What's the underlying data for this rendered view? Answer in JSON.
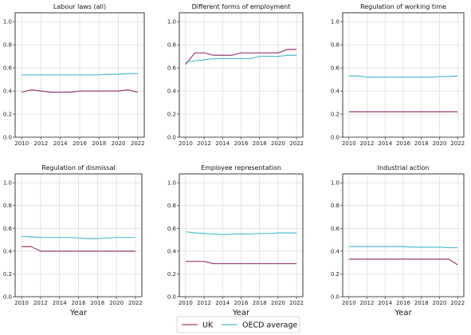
{
  "figure": {
    "legend": {
      "placement": "bottom-center",
      "items": [
        {
          "label": "UK",
          "color": "#9a3a73"
        },
        {
          "label": "OECD average",
          "color": "#4fbfd0"
        }
      ]
    },
    "colors": {
      "uk": "#9a3a73",
      "oecd": "#4fbfd0",
      "grid": "#d9d9d9",
      "axis": "#333333"
    }
  },
  "chart_data": [
    {
      "type": "line",
      "title": "Labour laws (all)",
      "xlabel": "",
      "ylabel": "",
      "grid": true,
      "x": [
        2010,
        2011,
        2012,
        2013,
        2014,
        2015,
        2016,
        2017,
        2018,
        2019,
        2020,
        2021,
        2022
      ],
      "xticks": [
        "2010",
        "2012",
        "2014",
        "2016",
        "2018",
        "2020",
        "2022"
      ],
      "yticks": [
        "0.0",
        "0.2",
        "0.4",
        "0.6",
        "0.8",
        "1.0"
      ],
      "xlim": [
        2010,
        2022
      ],
      "ylim": [
        0,
        1.05
      ],
      "series": [
        {
          "name": "UK",
          "values": [
            0.39,
            0.41,
            0.4,
            0.39,
            0.39,
            0.39,
            0.4,
            0.4,
            0.4,
            0.4,
            0.4,
            0.41,
            0.39
          ]
        },
        {
          "name": "OECD average",
          "values": [
            0.54,
            0.54,
            0.54,
            0.54,
            0.54,
            0.54,
            0.54,
            0.54,
            0.54,
            0.545,
            0.545,
            0.55,
            0.55
          ]
        }
      ]
    },
    {
      "type": "line",
      "title": "Different forms of employment",
      "xlabel": "",
      "ylabel": "",
      "grid": true,
      "x": [
        2010,
        2011,
        2012,
        2013,
        2014,
        2015,
        2016,
        2017,
        2018,
        2019,
        2020,
        2021,
        2022
      ],
      "xticks": [
        "2010",
        "2012",
        "2014",
        "2016",
        "2018",
        "2020",
        "2022"
      ],
      "yticks": [
        "0.0",
        "0.2",
        "0.4",
        "0.6",
        "0.8",
        "1.0"
      ],
      "xlim": [
        2010,
        2022
      ],
      "ylim": [
        0,
        1.05
      ],
      "series": [
        {
          "name": "UK",
          "values": [
            0.63,
            0.73,
            0.73,
            0.71,
            0.71,
            0.71,
            0.73,
            0.73,
            0.73,
            0.73,
            0.73,
            0.76,
            0.76
          ]
        },
        {
          "name": "OECD average",
          "values": [
            0.65,
            0.66,
            0.67,
            0.68,
            0.68,
            0.68,
            0.68,
            0.68,
            0.7,
            0.7,
            0.7,
            0.71,
            0.71
          ]
        }
      ]
    },
    {
      "type": "line",
      "title": "Regulation of working time",
      "xlabel": "",
      "ylabel": "",
      "grid": true,
      "x": [
        2010,
        2011,
        2012,
        2013,
        2014,
        2015,
        2016,
        2017,
        2018,
        2019,
        2020,
        2021,
        2022
      ],
      "xticks": [
        "2010",
        "2012",
        "2014",
        "2016",
        "2018",
        "2020",
        "2022"
      ],
      "yticks": [
        "0.0",
        "0.2",
        "0.4",
        "0.6",
        "0.8",
        "1.0"
      ],
      "xlim": [
        2010,
        2022
      ],
      "ylim": [
        0,
        1.05
      ],
      "series": [
        {
          "name": "UK",
          "values": [
            0.22,
            0.22,
            0.22,
            0.22,
            0.22,
            0.22,
            0.22,
            0.22,
            0.22,
            0.22,
            0.22,
            0.22,
            0.22
          ]
        },
        {
          "name": "OECD average",
          "values": [
            0.53,
            0.53,
            0.52,
            0.52,
            0.52,
            0.52,
            0.52,
            0.52,
            0.52,
            0.52,
            0.525,
            0.525,
            0.53
          ]
        }
      ]
    },
    {
      "type": "line",
      "title": "Regulation of dismissal",
      "xlabel": "Year",
      "ylabel": "",
      "grid": true,
      "x": [
        2010,
        2011,
        2012,
        2013,
        2014,
        2015,
        2016,
        2017,
        2018,
        2019,
        2020,
        2021,
        2022
      ],
      "xticks": [
        "2010",
        "2012",
        "2014",
        "2016",
        "2018",
        "2020",
        "2022"
      ],
      "yticks": [
        "0.0",
        "0.2",
        "0.4",
        "0.6",
        "0.8",
        "1.0"
      ],
      "xlim": [
        2010,
        2022
      ],
      "ylim": [
        0,
        1.05
      ],
      "series": [
        {
          "name": "UK",
          "values": [
            0.44,
            0.44,
            0.4,
            0.4,
            0.4,
            0.4,
            0.4,
            0.4,
            0.4,
            0.4,
            0.4,
            0.4,
            0.4
          ]
        },
        {
          "name": "OECD average",
          "values": [
            0.53,
            0.525,
            0.52,
            0.52,
            0.52,
            0.52,
            0.515,
            0.51,
            0.51,
            0.515,
            0.52,
            0.52,
            0.52
          ]
        }
      ]
    },
    {
      "type": "line",
      "title": "Employee representation",
      "xlabel": "Year",
      "ylabel": "",
      "grid": true,
      "x": [
        2010,
        2011,
        2012,
        2013,
        2014,
        2015,
        2016,
        2017,
        2018,
        2019,
        2020,
        2021,
        2022
      ],
      "xticks": [
        "2010",
        "2012",
        "2014",
        "2016",
        "2018",
        "2020",
        "2022"
      ],
      "yticks": [
        "0.0",
        "0.2",
        "0.4",
        "0.6",
        "0.8",
        "1.0"
      ],
      "xlim": [
        2010,
        2022
      ],
      "ylim": [
        0,
        1.05
      ],
      "series": [
        {
          "name": "UK",
          "values": [
            0.31,
            0.31,
            0.31,
            0.29,
            0.29,
            0.29,
            0.29,
            0.29,
            0.29,
            0.29,
            0.29,
            0.29,
            0.29
          ]
        },
        {
          "name": "OECD average",
          "values": [
            0.57,
            0.56,
            0.555,
            0.55,
            0.545,
            0.55,
            0.55,
            0.55,
            0.555,
            0.555,
            0.56,
            0.56,
            0.56
          ]
        }
      ]
    },
    {
      "type": "line",
      "title": "Industrial action",
      "xlabel": "Year",
      "ylabel": "",
      "grid": true,
      "x": [
        2010,
        2011,
        2012,
        2013,
        2014,
        2015,
        2016,
        2017,
        2018,
        2019,
        2020,
        2021,
        2022
      ],
      "xticks": [
        "2010",
        "2012",
        "2014",
        "2016",
        "2018",
        "2020",
        "2022"
      ],
      "yticks": [
        "0.0",
        "0.2",
        "0.4",
        "0.6",
        "0.8",
        "1.0"
      ],
      "xlim": [
        2010,
        2022
      ],
      "ylim": [
        0,
        1.05
      ],
      "series": [
        {
          "name": "UK",
          "values": [
            0.33,
            0.33,
            0.33,
            0.33,
            0.33,
            0.33,
            0.33,
            0.33,
            0.33,
            0.33,
            0.33,
            0.33,
            0.28
          ]
        },
        {
          "name": "OECD average",
          "values": [
            0.44,
            0.44,
            0.44,
            0.44,
            0.44,
            0.44,
            0.44,
            0.435,
            0.435,
            0.435,
            0.435,
            0.43,
            0.43
          ]
        }
      ]
    }
  ]
}
